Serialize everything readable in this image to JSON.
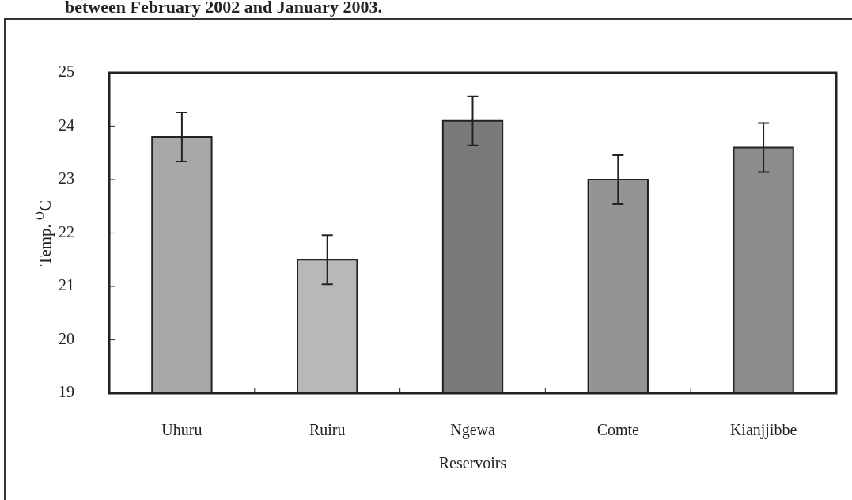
{
  "chart_data": {
    "type": "bar",
    "title": "between February 2002 and January 2003.",
    "xlabel": "Reservoirs",
    "ylabel": "Temp. $^{O}$C",
    "categories": [
      "Uhuru",
      "Ruiru",
      "Ngewa",
      "Comte",
      "Kianjjibbe"
    ],
    "values": [
      23.8,
      21.5,
      24.1,
      23.0,
      23.6
    ],
    "errors": [
      0.46,
      0.46,
      0.46,
      0.46,
      0.46
    ],
    "colors": [
      "#a8a8a8",
      "#b8b8b8",
      "#7a7a7a",
      "#949494",
      "#8c8c8c"
    ],
    "ylim": [
      19,
      25
    ],
    "yticks": [
      19,
      20,
      21,
      22,
      23,
      24,
      25
    ]
  }
}
